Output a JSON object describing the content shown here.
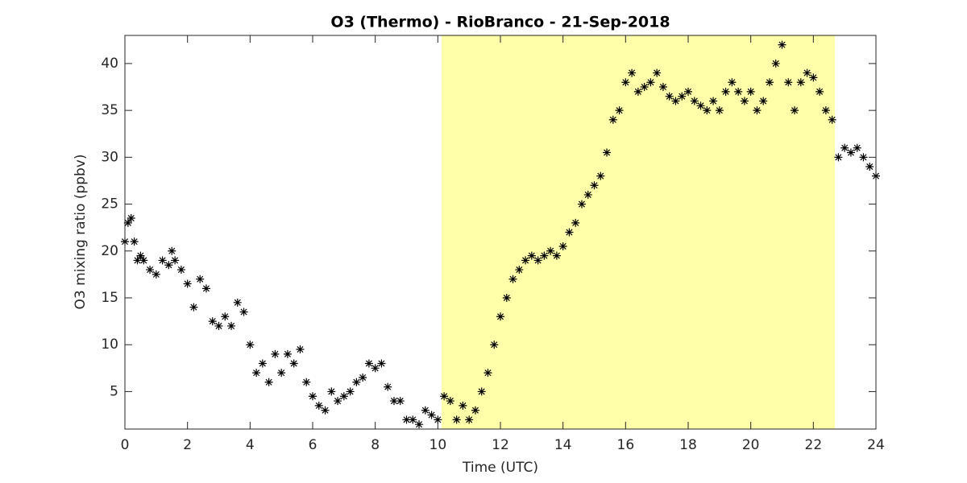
{
  "chart_data": {
    "type": "scatter",
    "title": "O3 (Thermo) - RioBranco - 21-Sep-2018",
    "x_label": "Time (UTC)",
    "y_label": "O3 mixing ratio (ppbv)",
    "shaded_region": [
      10.12,
      22.69
    ],
    "shaded_color": "#ffffaa",
    "color": "#000000",
    "xlim": [
      0,
      24
    ],
    "xticks": [
      0,
      2,
      4,
      6,
      8,
      10,
      12,
      14,
      16,
      18,
      20,
      22,
      24
    ],
    "ylim": [
      1,
      43
    ],
    "yticks": [
      5,
      10,
      15,
      20,
      25,
      30,
      35,
      40
    ],
    "x": [
      0,
      0.1,
      0.2,
      0.3,
      0.4,
      0.5,
      0.6,
      0.8,
      1.0,
      1.2,
      1.4,
      1.5,
      1.6,
      1.8,
      2.0,
      2.2,
      2.4,
      2.6,
      2.8,
      3.0,
      3.2,
      3.4,
      3.6,
      3.8,
      4.0,
      4.2,
      4.4,
      4.6,
      4.8,
      5.0,
      5.2,
      5.4,
      5.6,
      5.8,
      6.0,
      6.2,
      6.4,
      6.6,
      6.8,
      7.0,
      7.2,
      7.4,
      7.6,
      7.8,
      8.0,
      8.2,
      8.4,
      8.6,
      8.8,
      9.0,
      9.2,
      9.4,
      9.6,
      9.8,
      10.0,
      10.2,
      10.4,
      10.6,
      10.8,
      11.0,
      11.2,
      11.4,
      11.6,
      11.8,
      12.0,
      12.2,
      12.4,
      12.6,
      12.8,
      13.0,
      13.2,
      13.4,
      13.6,
      13.8,
      14.0,
      14.2,
      14.4,
      14.6,
      14.8,
      15.0,
      15.2,
      15.4,
      15.6,
      15.8,
      16.0,
      16.2,
      16.4,
      16.6,
      16.8,
      17.0,
      17.2,
      17.4,
      17.6,
      17.8,
      18.0,
      18.2,
      18.4,
      18.6,
      18.8,
      19.0,
      19.2,
      19.4,
      19.6,
      19.8,
      20.0,
      20.2,
      20.4,
      20.6,
      20.8,
      21.0,
      21.2,
      21.4,
      21.6,
      21.8,
      22.0,
      22.2,
      22.4,
      22.6,
      22.8,
      23.0,
      23.2,
      23.4,
      23.6,
      23.8,
      24.0
    ],
    "values": [
      21,
      23,
      23.5,
      21,
      19,
      19.5,
      19,
      18,
      17.5,
      19,
      18.5,
      20,
      19,
      18,
      16.5,
      14,
      17,
      16,
      12.5,
      12,
      13,
      12,
      14.5,
      13.5,
      10,
      7,
      8,
      6,
      9,
      7,
      9,
      8,
      9.5,
      6,
      4.5,
      3.5,
      3,
      5,
      4,
      4.5,
      5,
      6,
      6.5,
      8,
      7.5,
      8,
      5.5,
      4,
      4,
      2,
      2,
      1.5,
      3,
      2.5,
      2,
      4.5,
      4,
      2,
      3.5,
      2,
      3,
      5,
      7,
      10,
      13,
      15,
      17,
      18,
      19,
      19.5,
      19,
      19.5,
      20,
      19.5,
      20.5,
      22,
      23,
      25,
      26,
      27,
      28,
      30.5,
      34,
      35,
      38,
      39,
      37,
      37.5,
      38,
      39,
      37.5,
      36.5,
      36,
      36.5,
      37,
      36,
      35.5,
      35,
      36,
      35,
      37,
      38,
      37,
      36,
      37,
      35,
      36,
      38,
      40,
      42,
      38,
      35,
      38,
      39,
      38.5,
      37,
      35,
      34,
      30,
      31,
      30.5,
      31,
      30,
      29,
      28
    ]
  }
}
